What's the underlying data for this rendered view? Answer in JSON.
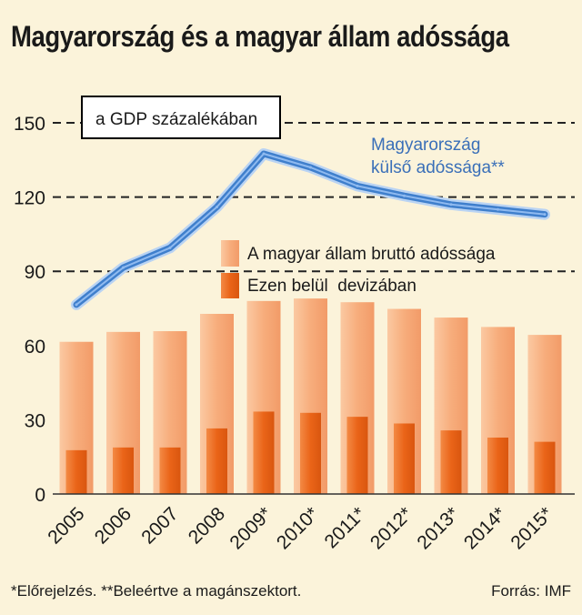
{
  "title": "Magyarország és a magyar állam adóssága",
  "chart_data": {
    "type": "bar",
    "unit_label": "a GDP százalékában",
    "categories": [
      "2005",
      "2006",
      "2007",
      "2008",
      "2009*",
      "2010*",
      "2011*",
      "2012*",
      "2013*",
      "2014*",
      "2015*"
    ],
    "ylim": [
      0,
      150
    ],
    "yticks": [
      0,
      30,
      60,
      90,
      120,
      150
    ],
    "grid": "dashed horizontal at 90, 120, 150",
    "series": [
      {
        "name": "A magyar állam bruttó adóssága",
        "kind": "bar",
        "color": "#f8b487",
        "values": [
          61.5,
          65.5,
          65.8,
          72.8,
          78,
          79,
          77.5,
          74.8,
          71.3,
          67.5,
          64.3
        ]
      },
      {
        "name": "Ezen belül  devizában",
        "kind": "bar",
        "color": "#ec6c1e",
        "values": [
          17.7,
          18.8,
          18.8,
          26.5,
          33.3,
          32.8,
          31.2,
          28.5,
          25.7,
          22.8,
          21.1
        ]
      },
      {
        "name": "Magyarország külső adóssága**",
        "kind": "line",
        "color": "#3f7fcc",
        "values": [
          76.5,
          91.5,
          99.5,
          116,
          137.5,
          132,
          124.5,
          120.5,
          117,
          115,
          113
        ]
      }
    ],
    "line_label_lines": [
      "Magyarország",
      "külső adóssága**"
    ]
  },
  "footer": {
    "note": "*Előrejelzés. **Beleértve a magánszektort.",
    "source": "Forrás: IMF"
  }
}
